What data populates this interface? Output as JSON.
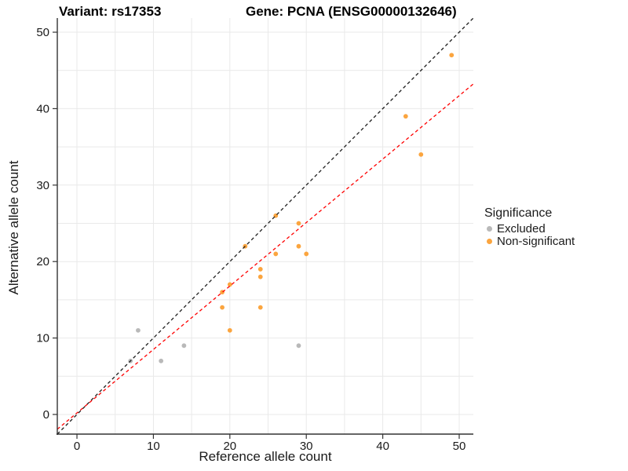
{
  "titles": {
    "variant": "Variant: rs17353",
    "gene": "Gene: PCNA (ENSG00000132646)"
  },
  "axes": {
    "x_label": "Reference allele count",
    "y_label": "Alternative allele count"
  },
  "legend": {
    "title": "Significance",
    "items": [
      {
        "label": "Excluded",
        "color": "#b9b9b9"
      },
      {
        "label": "Non-significant",
        "color": "#fba53f"
      }
    ]
  },
  "chart_data": {
    "type": "scatter",
    "title_left": "Variant: rs17353",
    "title_right": "Gene: PCNA (ENSG00000132646)",
    "xlabel": "Reference allele count",
    "ylabel": "Alternative allele count",
    "xlim": [
      -2.57,
      51.85
    ],
    "ylim": [
      -2.57,
      51.85
    ],
    "x_ticks": [
      0,
      10,
      20,
      30,
      40,
      50
    ],
    "y_ticks": [
      0,
      10,
      20,
      30,
      40,
      50
    ],
    "grid_interval": 5,
    "grid_on": true,
    "legend_position": "right",
    "series": [
      {
        "name": "Excluded",
        "color": "#b9b9b9",
        "points": [
          [
            7,
            7
          ],
          [
            8,
            11
          ],
          [
            11,
            7
          ],
          [
            14,
            9
          ],
          [
            29,
            9
          ]
        ]
      },
      {
        "name": "Non-significant",
        "color": "#fba53f",
        "points": [
          [
            19,
            14
          ],
          [
            19,
            16
          ],
          [
            20,
            11
          ],
          [
            20,
            17
          ],
          [
            22,
            22
          ],
          [
            24,
            14
          ],
          [
            24,
            18
          ],
          [
            24,
            19
          ],
          [
            26,
            21
          ],
          [
            26,
            26
          ],
          [
            29,
            22
          ],
          [
            29,
            25
          ],
          [
            30,
            21
          ],
          [
            43,
            39
          ],
          [
            45,
            34
          ],
          [
            49,
            47
          ]
        ]
      }
    ],
    "lines": [
      {
        "name": "identity-line",
        "slope": 1,
        "intercept": 0,
        "color": "#1a1a1a",
        "dashed": true
      },
      {
        "name": "expected-ratio-line",
        "slope": 0.83,
        "intercept": 0.2,
        "color": "#ff0000",
        "dashed": true
      }
    ],
    "style": {
      "grid_color": "#e9e9e9",
      "axis_color": "#333333",
      "tick_label_color": "#1a1a1a",
      "background": "#ffffff",
      "point_radius": 2.9
    }
  }
}
